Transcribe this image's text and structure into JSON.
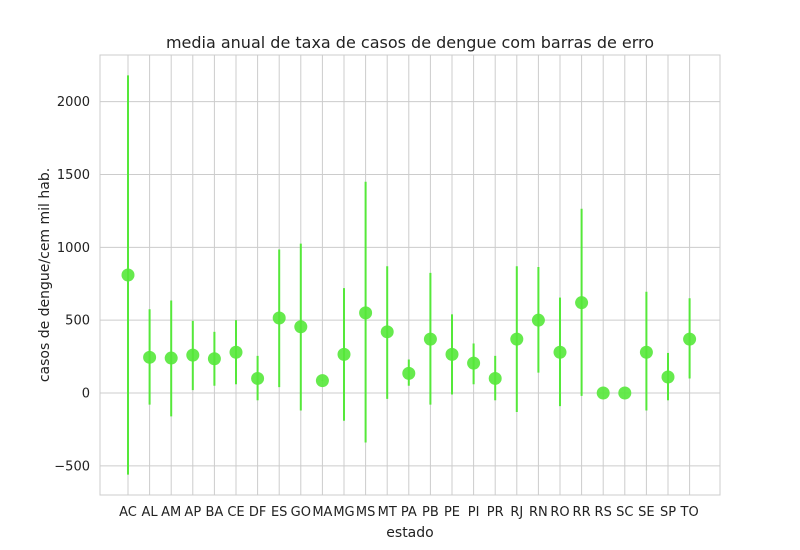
{
  "chart_data": {
    "type": "scatter",
    "title": "media anual de taxa de casos de dengue com barras de erro",
    "xlabel": "estado",
    "ylabel": "casos de dengue/cem mil hab.",
    "ylim": [
      -700,
      2320
    ],
    "yticks": [
      -500,
      0,
      500,
      1000,
      1500,
      2000
    ],
    "ytick_labels": [
      "−500",
      "0",
      "500",
      "1000",
      "1500",
      "2000"
    ],
    "grid": true,
    "marker_color": "#55e83a",
    "errorbar_color": "#55e83a",
    "categories": [
      "AC",
      "AL",
      "AM",
      "AP",
      "BA",
      "CE",
      "DF",
      "ES",
      "GO",
      "MA",
      "MG",
      "MS",
      "MT",
      "PA",
      "PB",
      "PE",
      "PI",
      "PR",
      "RJ",
      "RN",
      "RO",
      "RR",
      "RS",
      "SC",
      "SE",
      "SP",
      "TO"
    ],
    "values": [
      810,
      245,
      240,
      260,
      235,
      280,
      100,
      515,
      455,
      85,
      265,
      550,
      420,
      135,
      370,
      265,
      205,
      100,
      370,
      500,
      280,
      620,
      0,
      0,
      280,
      110,
      370
    ],
    "err_low": [
      -560,
      -80,
      -160,
      20,
      50,
      60,
      -50,
      40,
      -120,
      90,
      -190,
      -340,
      -40,
      50,
      -80,
      -10,
      60,
      -50,
      -130,
      140,
      -90,
      -20,
      0,
      0,
      -120,
      -50,
      100
    ],
    "err_high": [
      2180,
      575,
      635,
      495,
      420,
      500,
      255,
      985,
      1025,
      85,
      720,
      1450,
      870,
      230,
      825,
      540,
      340,
      255,
      870,
      865,
      655,
      1265,
      0,
      0,
      695,
      275,
      650
    ]
  }
}
